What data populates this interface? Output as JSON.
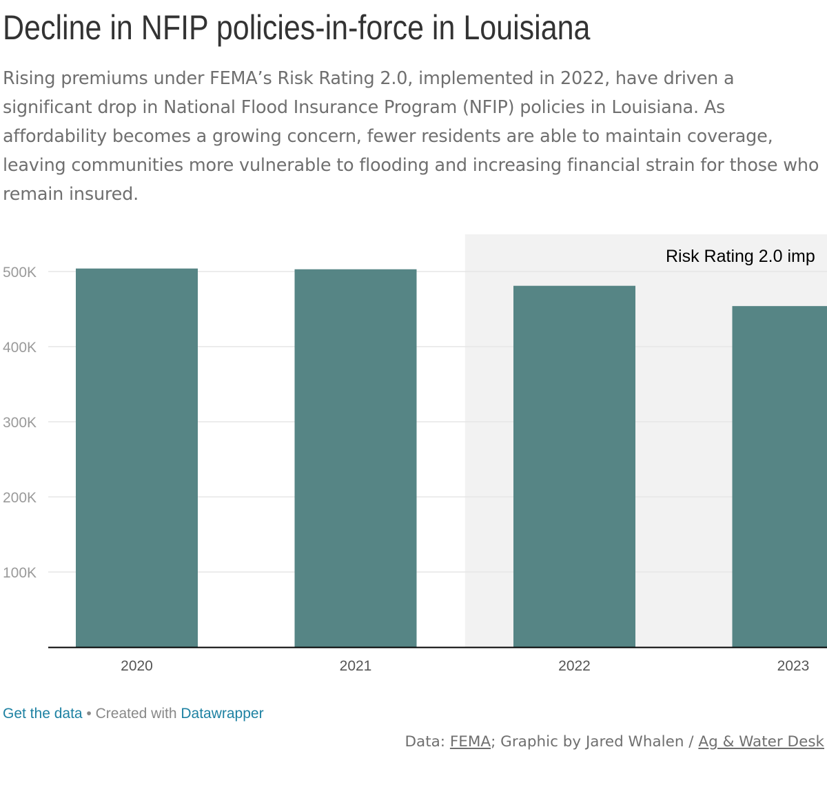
{
  "header": {
    "title": "Decline in NFIP policies-in-force in Louisiana",
    "description": "Rising premiums under FEMA’s Risk Rating 2.0, implemented in 2022, have driven a significant drop in National Flood Insurance Program (NFIP) policies in Louisiana. As affordability becomes a growing concern, fewer residents are able to maintain coverage, leaving communities more vulnerable to flooding and increasing financial strain for those who remain insured."
  },
  "chart_data": {
    "type": "bar",
    "categories": [
      "2020",
      "2021",
      "2022",
      "2023"
    ],
    "values": [
      504000,
      503000,
      481000,
      454000
    ],
    "ylim": [
      0,
      500000
    ],
    "y_ticks": [
      100000,
      200000,
      300000,
      400000,
      500000
    ],
    "y_tick_labels": [
      "100K",
      "200K",
      "300K",
      "400K",
      "500K"
    ],
    "grid": true,
    "bar_color": "#568585",
    "highlight_range": {
      "from_category": "2022",
      "to_category": "2023",
      "label": "Risk Rating 2.0 imp",
      "color": "#f2f2f2"
    }
  },
  "footer": {
    "get_data": "Get the data",
    "separator": " • Created with ",
    "datawrapper": "Datawrapper",
    "data_prefix": "Data: ",
    "data_source": "FEMA",
    "credit_middle": "; Graphic by Jared Whalen / ",
    "credit_org": "Ag & Water Desk"
  },
  "colors": {
    "bar": "#568585",
    "link": "#1d81a2",
    "title": "#333333",
    "text_muted": "#6f6f6f"
  }
}
